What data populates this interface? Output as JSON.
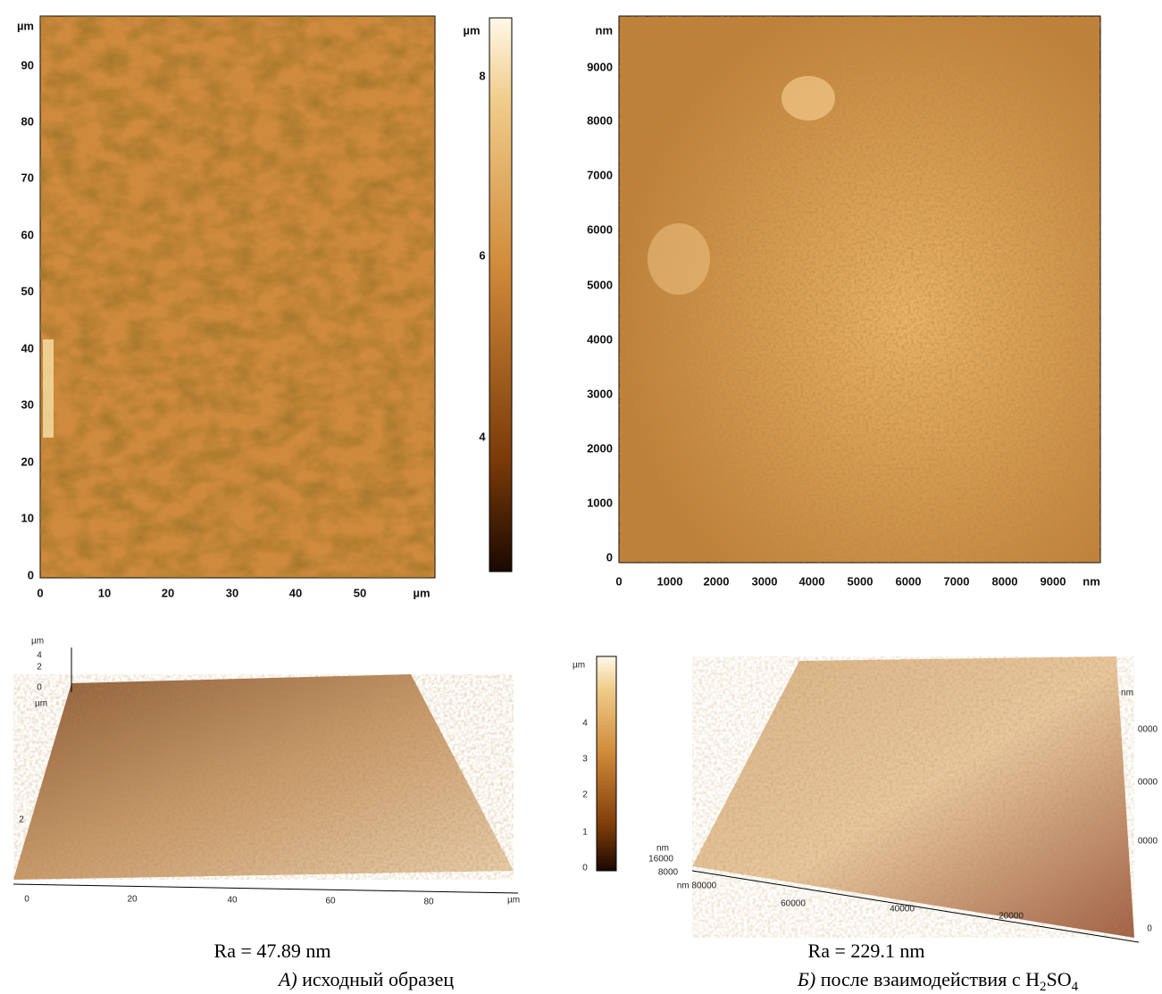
{
  "panel_a": {
    "map_y_labels": [
      "µm",
      "90",
      "80",
      "70",
      "60",
      "50",
      "40",
      "30",
      "20",
      "10",
      "0"
    ],
    "map_x_labels": [
      "0",
      "10",
      "20",
      "30",
      "40",
      "50",
      "µm"
    ],
    "colorbar_labels": [
      "µm",
      "8",
      "6",
      "4"
    ],
    "surface_z_labels": [
      "µm",
      "4",
      "2",
      "0",
      "µm",
      "2"
    ],
    "surface_x_labels": [
      "0",
      "20",
      "40",
      "60",
      "80",
      "µm"
    ],
    "roughness": "Ra = 47.89 nm",
    "caption_letter": "А)",
    "caption_text": "исходный образец"
  },
  "panel_b": {
    "map_y_labels": [
      "nm",
      "9000",
      "8000",
      "7000",
      "6000",
      "5000",
      "4000",
      "3000",
      "2000",
      "1000",
      "0"
    ],
    "map_x_labels": [
      "0",
      "1000",
      "2000",
      "3000",
      "4000",
      "5000",
      "6000",
      "7000",
      "8000",
      "9000",
      "nm"
    ],
    "colorbar_labels": [
      "µm",
      "4",
      "3",
      "2",
      "1",
      "0"
    ],
    "surface_left_labels": [
      "nm",
      "16000",
      "8000",
      "nm 80000"
    ],
    "surface_bottom_labels": [
      "60000",
      "40000",
      "20000",
      "0"
    ],
    "surface_right_labels": [
      "nm",
      "0000",
      "0000",
      "0000"
    ],
    "roughness": "Ra = 229.1 nm",
    "caption_letter": "Б)",
    "caption_parts": [
      "после взаимодействия с H",
      "2",
      "SO",
      "4"
    ]
  }
}
